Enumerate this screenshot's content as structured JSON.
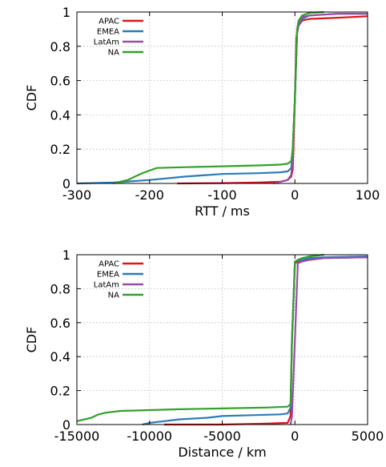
{
  "chart_data": [
    {
      "type": "line",
      "xlabel": "RTT / ms",
      "ylabel": "CDF",
      "xlim": [
        -300,
        100
      ],
      "ylim": [
        0,
        1
      ],
      "xticks": [
        "-300",
        "-200",
        "-100",
        "0",
        "100"
      ],
      "xtick_values": [
        -300,
        -200,
        -100,
        0,
        100
      ],
      "yticks": [
        "0",
        "0.2",
        "0.4",
        "0.6",
        "0.8",
        "1"
      ],
      "ytick_values": [
        0,
        0.2,
        0.4,
        0.6,
        0.8,
        1
      ],
      "grid": true,
      "legend_position": "top-left",
      "series": [
        {
          "name": "APAC",
          "color": "#d7191c",
          "x": [
            -162,
            -100,
            -50,
            -20,
            -10,
            -5,
            -3,
            -2,
            0,
            2,
            5,
            10,
            20,
            50,
            100
          ],
          "y": [
            0.0,
            0.002,
            0.005,
            0.01,
            0.02,
            0.04,
            0.08,
            0.2,
            0.5,
            0.85,
            0.92,
            0.95,
            0.96,
            0.965,
            0.975
          ]
        },
        {
          "name": "EMEA",
          "color": "#2c7bb6",
          "x": [
            -300,
            -250,
            -200,
            -150,
            -100,
            -50,
            -20,
            -10,
            -5,
            -3,
            0,
            3,
            5,
            10,
            20,
            40,
            60,
            100
          ],
          "y": [
            0.0,
            0.005,
            0.02,
            0.04,
            0.055,
            0.06,
            0.065,
            0.07,
            0.09,
            0.2,
            0.5,
            0.88,
            0.92,
            0.96,
            0.98,
            0.985,
            0.99,
            0.99
          ]
        },
        {
          "name": "LatAm",
          "color": "#984ea3",
          "x": [
            -30,
            -10,
            -5,
            -3,
            0,
            3,
            5,
            10,
            20,
            40,
            60,
            100
          ],
          "y": [
            0.0,
            0.02,
            0.05,
            0.15,
            0.5,
            0.88,
            0.93,
            0.97,
            0.98,
            0.985,
            0.99,
            0.99
          ]
        },
        {
          "name": "NA",
          "color": "#33a02c",
          "x": [
            -250,
            -230,
            -220,
            -210,
            -200,
            -190,
            -150,
            -100,
            -50,
            -20,
            -10,
            -5,
            -3,
            0,
            3,
            5,
            10,
            20,
            40
          ],
          "y": [
            0.0,
            0.02,
            0.04,
            0.06,
            0.075,
            0.09,
            0.095,
            0.1,
            0.105,
            0.11,
            0.115,
            0.13,
            0.2,
            0.5,
            0.9,
            0.95,
            0.98,
            0.995,
            1.0
          ]
        }
      ]
    },
    {
      "type": "line",
      "xlabel": "Distance / km",
      "ylabel": "CDF",
      "xlim": [
        -15000,
        5000
      ],
      "ylim": [
        0,
        1
      ],
      "xticks": [
        "-15000",
        "-10000",
        "-5000",
        "0",
        "5000"
      ],
      "xtick_values": [
        -15000,
        -10000,
        -5000,
        0,
        5000
      ],
      "yticks": [
        "0",
        "0.2",
        "0.4",
        "0.6",
        "0.8",
        "1"
      ],
      "ytick_values": [
        0,
        0.2,
        0.4,
        0.6,
        0.8,
        1
      ],
      "grid": true,
      "legend_position": "top-left",
      "series": [
        {
          "name": "APAC",
          "color": "#d7191c",
          "x": [
            -9000,
            -5000,
            -2000,
            -500,
            -300,
            -200,
            0,
            200,
            500,
            1000,
            2000,
            5000
          ],
          "y": [
            0.0,
            0.0,
            0.005,
            0.01,
            0.05,
            0.5,
            0.95,
            0.96,
            0.965,
            0.97,
            0.98,
            0.985
          ]
        },
        {
          "name": "EMEA",
          "color": "#2c7bb6",
          "x": [
            -10500,
            -10000,
            -9000,
            -8000,
            -6000,
            -5000,
            -3000,
            -1000,
            -500,
            -300,
            -200,
            0,
            200,
            500,
            1000,
            2000,
            5000
          ],
          "y": [
            0.0,
            0.01,
            0.02,
            0.03,
            0.04,
            0.05,
            0.055,
            0.06,
            0.065,
            0.1,
            0.5,
            0.96,
            0.965,
            0.97,
            0.98,
            0.985,
            0.99
          ]
        },
        {
          "name": "LatAm",
          "color": "#984ea3",
          "x": [
            -300,
            -200,
            0,
            200,
            500,
            1000,
            2000,
            5000
          ],
          "y": [
            0.0,
            0.05,
            0.5,
            0.95,
            0.96,
            0.97,
            0.98,
            0.985
          ]
        },
        {
          "name": "NA",
          "color": "#33a02c",
          "x": [
            -15000,
            -14000,
            -13500,
            -13000,
            -12000,
            -10000,
            -8000,
            -5000,
            -2000,
            -500,
            -300,
            -200,
            0,
            200,
            500,
            1000,
            2000
          ],
          "y": [
            0.02,
            0.04,
            0.06,
            0.07,
            0.08,
            0.085,
            0.09,
            0.095,
            0.1,
            0.105,
            0.12,
            0.5,
            0.96,
            0.97,
            0.98,
            0.99,
            1.0
          ]
        }
      ]
    }
  ]
}
